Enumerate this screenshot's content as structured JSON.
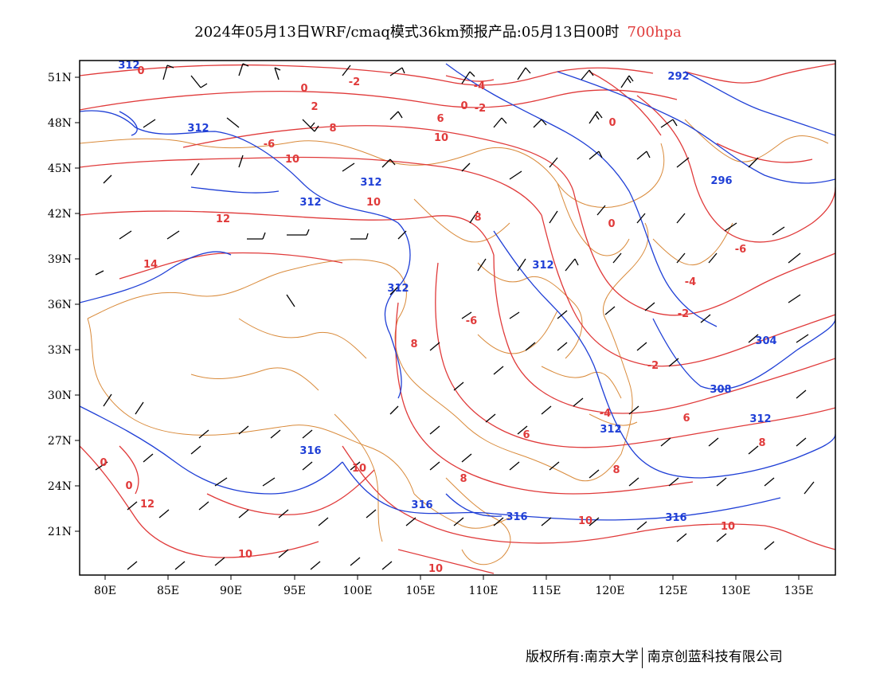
{
  "title": {
    "main": "2024年05月13日WRF/cmaq模式36km预报产品:05月13日00时",
    "level": "700hpa"
  },
  "axes": {
    "lat_labels": [
      "51N",
      "48N",
      "45N",
      "42N",
      "39N",
      "36N",
      "33N",
      "30N",
      "27N",
      "24N",
      "21N"
    ],
    "lon_labels": [
      "80E",
      "85E",
      "90E",
      "95E",
      "100E",
      "105E",
      "110E",
      "115E",
      "120E",
      "125E",
      "130E",
      "135E"
    ]
  },
  "colors": {
    "temperature": "#e03a3a",
    "geopotential": "#1f3fd6",
    "boundary": "#d98a3a",
    "wind": "#000000",
    "frame": "#000000"
  },
  "chart_data": {
    "type": "contour-map",
    "projection_extent": {
      "lon": [
        78,
        138
      ],
      "lat": [
        18,
        52
      ]
    },
    "geopotential_contour_labels": [
      "312",
      "292",
      "312",
      "312",
      "296",
      "312",
      "312",
      "316",
      "304",
      "308",
      "312",
      "312",
      "316",
      "316",
      "316",
      "316"
    ],
    "temperature_contour_labels": [
      "0",
      "-2",
      "-4",
      "0",
      "2",
      "0",
      "-2",
      "6",
      "-6",
      "10",
      "8",
      "10",
      "10",
      "12",
      "14",
      "8",
      "0",
      "-6",
      "-4",
      "-6",
      "-2",
      "6",
      "-2",
      "8",
      "-4",
      "6",
      "6",
      "8",
      "0",
      "10",
      "10",
      "12",
      "10",
      "8",
      "8",
      "10",
      "10"
    ],
    "wind_barbs": "present"
  },
  "contour_labels": [
    {
      "text": "312",
      "color": "blue"
    },
    {
      "text": "0",
      "color": "red"
    },
    {
      "text": "-2",
      "color": "red"
    },
    {
      "text": "-4",
      "color": "red"
    },
    {
      "text": "292",
      "color": "blue"
    },
    {
      "text": "0",
      "color": "red"
    },
    {
      "text": "2",
      "color": "red"
    },
    {
      "text": "0",
      "color": "red"
    },
    {
      "text": "-2",
      "color": "red"
    },
    {
      "text": "312",
      "color": "blue"
    },
    {
      "text": "8",
      "color": "red"
    },
    {
      "text": "6",
      "color": "red"
    },
    {
      "text": "0",
      "color": "red"
    },
    {
      "text": "-6",
      "color": "red"
    },
    {
      "text": "10",
      "color": "red"
    },
    {
      "text": "10",
      "color": "red"
    },
    {
      "text": "312",
      "color": "blue"
    },
    {
      "text": "296",
      "color": "blue"
    },
    {
      "text": "312",
      "color": "blue"
    },
    {
      "text": "10",
      "color": "red"
    },
    {
      "text": "12",
      "color": "red"
    },
    {
      "text": "8",
      "color": "red"
    },
    {
      "text": "0",
      "color": "red"
    },
    {
      "text": "-6",
      "color": "red"
    },
    {
      "text": "14",
      "color": "red"
    },
    {
      "text": "312",
      "color": "blue"
    },
    {
      "text": "-4",
      "color": "red"
    },
    {
      "text": "312",
      "color": "blue"
    },
    {
      "text": "-6",
      "color": "red"
    },
    {
      "text": "-2",
      "color": "red"
    },
    {
      "text": "304",
      "color": "blue"
    },
    {
      "text": "8",
      "color": "red"
    },
    {
      "text": "-2",
      "color": "red"
    },
    {
      "text": "308",
      "color": "blue"
    },
    {
      "text": "-4",
      "color": "red"
    },
    {
      "text": "6",
      "color": "red"
    },
    {
      "text": "312",
      "color": "blue"
    },
    {
      "text": "6",
      "color": "red"
    },
    {
      "text": "312",
      "color": "blue"
    },
    {
      "text": "8",
      "color": "red"
    },
    {
      "text": "316",
      "color": "blue"
    },
    {
      "text": "0",
      "color": "red"
    },
    {
      "text": "10",
      "color": "red"
    },
    {
      "text": "8",
      "color": "red"
    },
    {
      "text": "8",
      "color": "red"
    },
    {
      "text": "12",
      "color": "red"
    },
    {
      "text": "316",
      "color": "blue"
    },
    {
      "text": "316",
      "color": "blue"
    },
    {
      "text": "10",
      "color": "red"
    },
    {
      "text": "316",
      "color": "blue"
    },
    {
      "text": "10",
      "color": "red"
    },
    {
      "text": "10",
      "color": "red"
    },
    {
      "text": "10",
      "color": "red"
    },
    {
      "text": "0",
      "color": "red"
    }
  ],
  "footer": {
    "copyright": "版权所有:南京大学",
    "company": "南京创蓝科技有限公司"
  }
}
